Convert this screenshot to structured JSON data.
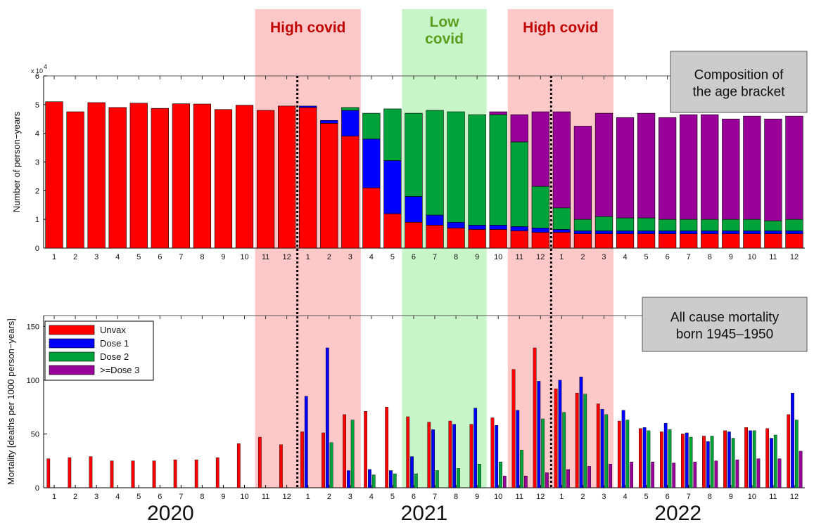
{
  "colors": {
    "unvax": "#ff0000",
    "dose1": "#0000ff",
    "dose2": "#00a33a",
    "dose3": "#990099",
    "high_band": "#ffc8c8",
    "low_band": "#c8f5c8",
    "high_text": "#c00000",
    "low_text": "#5a9e1e"
  },
  "bands": [
    {
      "label": "High covid",
      "kind": "high"
    },
    {
      "label": "Low covid",
      "kind": "low"
    },
    {
      "label": "High covid",
      "kind": "high"
    }
  ],
  "years": [
    "2020",
    "2021",
    "2022"
  ],
  "chart_data": [
    {
      "type": "bar",
      "stacked": true,
      "box_label_line1": "Composition of",
      "box_label_line2": "the age bracket",
      "ylabel": "Number of person−years",
      "y_exponent": "x 10",
      "y_exponent_power": "4",
      "ylim": [
        0,
        6
      ],
      "yticks": [
        0,
        1,
        2,
        3,
        4,
        5,
        6
      ],
      "categories": [
        "1",
        "2",
        "3",
        "4",
        "5",
        "6",
        "7",
        "8",
        "9",
        "10",
        "11",
        "12",
        "1",
        "2",
        "3",
        "4",
        "5",
        "6",
        "7",
        "8",
        "9",
        "10",
        "11",
        "12",
        "1",
        "2",
        "3",
        "4",
        "5",
        "6",
        "7",
        "8",
        "9",
        "10",
        "11",
        "12"
      ],
      "series": [
        {
          "key": "unvax",
          "values": [
            5.1,
            4.75,
            5.07,
            4.9,
            5.05,
            4.87,
            5.03,
            5.02,
            4.83,
            4.98,
            4.8,
            4.95,
            4.9,
            4.35,
            3.9,
            2.1,
            1.2,
            0.9,
            0.8,
            0.7,
            0.65,
            0.65,
            0.6,
            0.55,
            0.55,
            0.5,
            0.5,
            0.5,
            0.5,
            0.5,
            0.5,
            0.5,
            0.5,
            0.5,
            0.5,
            0.5
          ]
        },
        {
          "key": "dose1",
          "values": [
            0,
            0,
            0,
            0,
            0,
            0,
            0,
            0,
            0,
            0,
            0,
            0,
            0.05,
            0.1,
            0.9,
            1.7,
            1.85,
            0.9,
            0.35,
            0.2,
            0.15,
            0.15,
            0.15,
            0.15,
            0.1,
            0.1,
            0.1,
            0.1,
            0.1,
            0.1,
            0.1,
            0.1,
            0.1,
            0.1,
            0.1,
            0.1
          ]
        },
        {
          "key": "dose2",
          "values": [
            0,
            0,
            0,
            0,
            0,
            0,
            0,
            0,
            0,
            0,
            0,
            0,
            0,
            0,
            0.1,
            0.9,
            1.8,
            2.9,
            3.65,
            3.85,
            3.85,
            3.85,
            2.95,
            1.45,
            0.75,
            0.4,
            0.5,
            0.45,
            0.45,
            0.4,
            0.4,
            0.4,
            0.4,
            0.4,
            0.35,
            0.4
          ]
        },
        {
          "key": "dose3",
          "values": [
            0,
            0,
            0,
            0,
            0,
            0,
            0,
            0,
            0,
            0,
            0,
            0,
            0,
            0,
            0,
            0,
            0,
            0,
            0,
            0,
            0,
            0.1,
            0.95,
            2.6,
            3.35,
            3.25,
            3.6,
            3.5,
            3.65,
            3.55,
            3.65,
            3.65,
            3.5,
            3.6,
            3.55,
            3.6
          ]
        }
      ]
    },
    {
      "type": "bar",
      "grouped": true,
      "box_label_line1": "All cause mortality",
      "box_label_line2": "born 1945–1950",
      "ylabel": "Mortality [deaths per 1000 person−years]",
      "ylim": [
        0,
        160
      ],
      "yticks": [
        0,
        50,
        100,
        150
      ],
      "categories": [
        "1",
        "2",
        "3",
        "4",
        "5",
        "6",
        "7",
        "8",
        "9",
        "10",
        "11",
        "12",
        "1",
        "2",
        "3",
        "4",
        "5",
        "6",
        "7",
        "8",
        "9",
        "10",
        "11",
        "12",
        "1",
        "2",
        "3",
        "4",
        "5",
        "6",
        "7",
        "8",
        "9",
        "10",
        "11",
        "12"
      ],
      "series": [
        {
          "key": "unvax",
          "name": "Unvax",
          "values": [
            27,
            28,
            29,
            25,
            25,
            25,
            26,
            26,
            28,
            41,
            47,
            40,
            52,
            51,
            68,
            71,
            75,
            66,
            61,
            62,
            59,
            65,
            110,
            130,
            92,
            88,
            78,
            62,
            55,
            52,
            50,
            48,
            53,
            56,
            55,
            68
          ]
        },
        {
          "key": "dose1",
          "name": "Dose 1",
          "values": [
            null,
            null,
            null,
            null,
            null,
            null,
            null,
            null,
            null,
            null,
            null,
            null,
            85,
            130,
            16,
            17,
            16,
            29,
            54,
            59,
            74,
            58,
            72,
            99,
            100,
            103,
            73,
            72,
            56,
            60,
            51,
            43,
            52,
            53,
            46,
            88
          ]
        },
        {
          "key": "dose2",
          "name": "Dose 2",
          "values": [
            null,
            null,
            null,
            null,
            null,
            null,
            null,
            null,
            null,
            null,
            null,
            null,
            null,
            42,
            63,
            12,
            13,
            13,
            16,
            18,
            22,
            24,
            35,
            64,
            70,
            87,
            68,
            63,
            53,
            54,
            47,
            48,
            46,
            53,
            49,
            63
          ]
        },
        {
          "key": "dose3",
          "name": ">=Dose 3",
          "values": [
            null,
            null,
            null,
            null,
            null,
            null,
            null,
            null,
            null,
            null,
            null,
            null,
            null,
            null,
            null,
            null,
            null,
            null,
            null,
            null,
            null,
            11,
            11,
            14,
            17,
            20,
            22,
            24,
            24,
            23,
            24,
            25,
            26,
            27,
            27,
            34
          ]
        }
      ]
    }
  ]
}
